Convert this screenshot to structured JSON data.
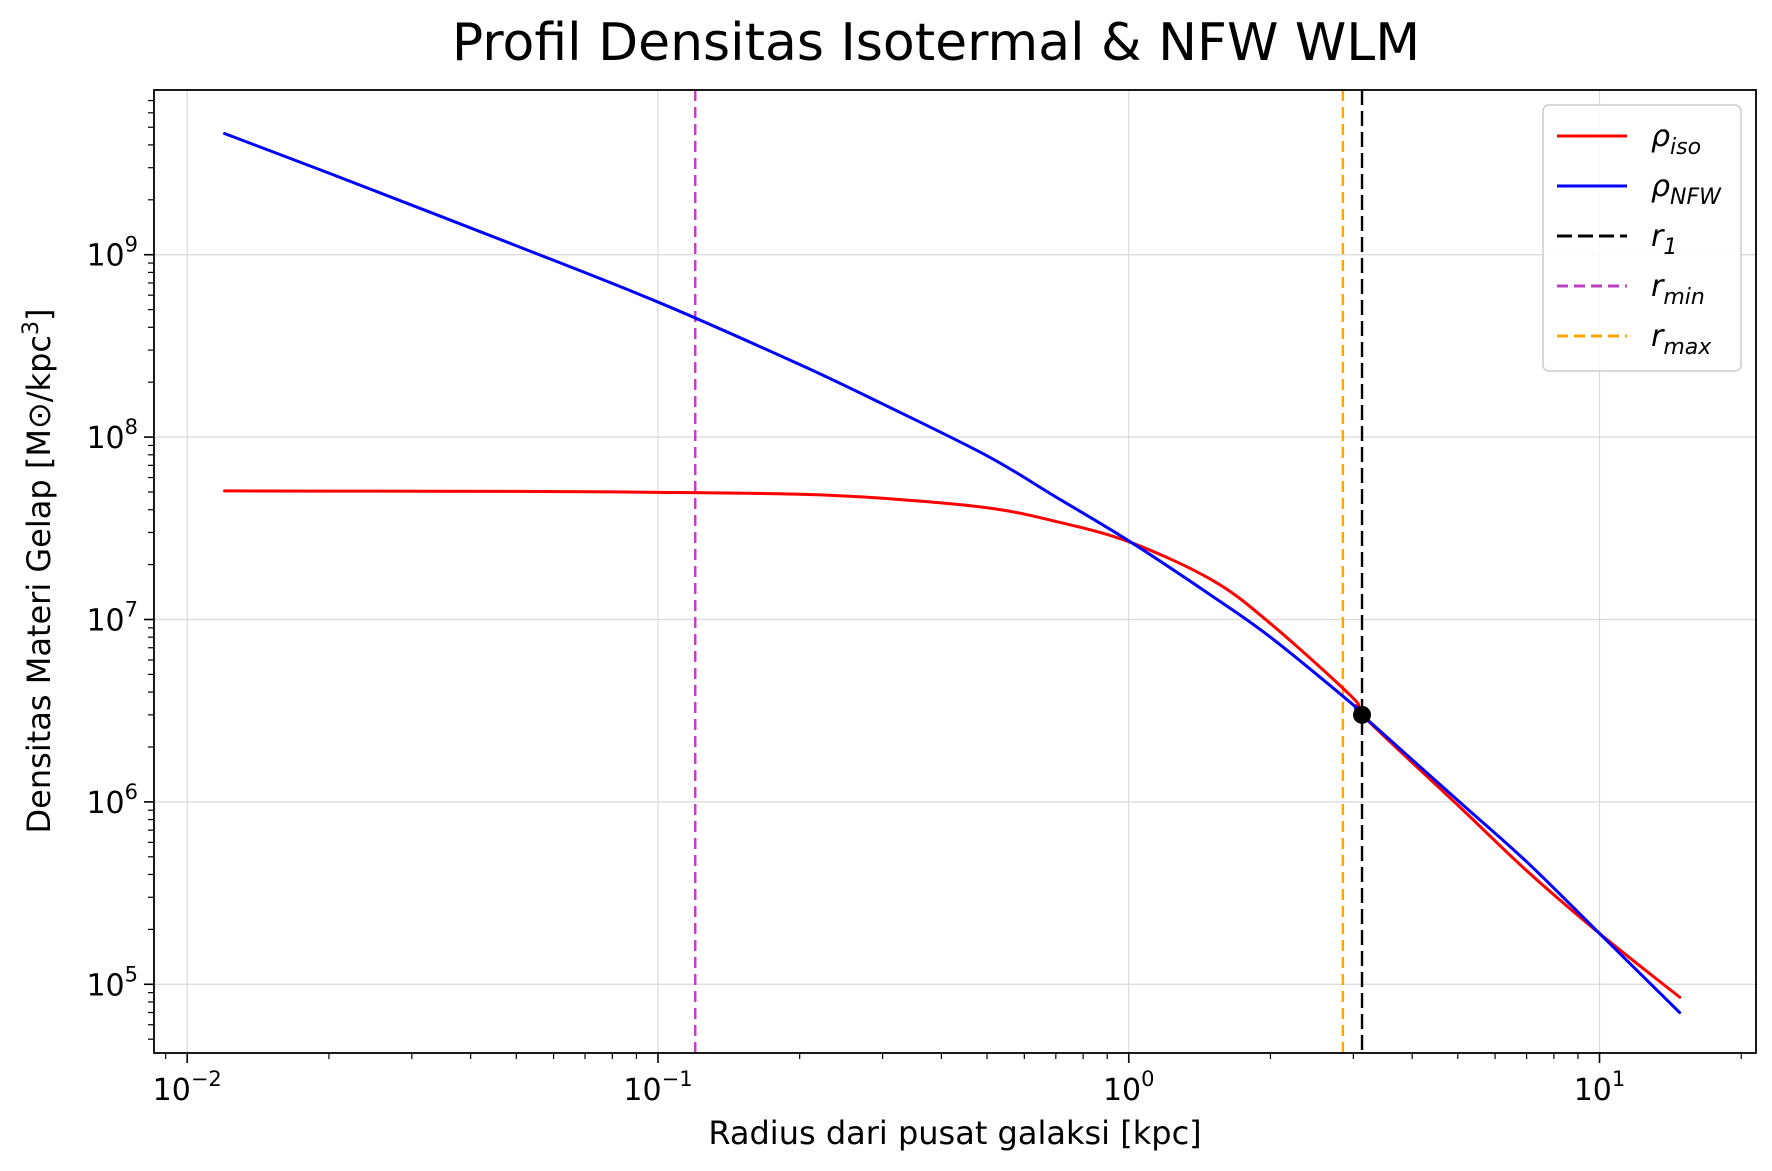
{
  "chart_data": {
    "type": "line",
    "title": "Profil Densitas Isotermal & NFW WLM",
    "xlabel": "Radius dari pusat galaksi [kpc]",
    "ylabel": "Densitas Materi Gelap [M⊙/kpc³]",
    "xscale": "log",
    "yscale": "log",
    "xlim": [
      0.0085,
      21.5
    ],
    "ylim": [
      42000,
      8000000000
    ],
    "grid": true,
    "legend_position": "top-right",
    "x_ticks": [
      {
        "value": 0.01,
        "base": "10",
        "exp": "−2"
      },
      {
        "value": 0.1,
        "base": "10",
        "exp": "−1"
      },
      {
        "value": 1,
        "base": "10",
        "exp": "0"
      },
      {
        "value": 10,
        "base": "10",
        "exp": "1"
      }
    ],
    "y_ticks": [
      {
        "value": 100000,
        "base": "10",
        "exp": "5"
      },
      {
        "value": 1000000,
        "base": "10",
        "exp": "6"
      },
      {
        "value": 10000000,
        "base": "10",
        "exp": "7"
      },
      {
        "value": 100000000,
        "base": "10",
        "exp": "8"
      },
      {
        "value": 1000000000,
        "base": "10",
        "exp": "9"
      }
    ],
    "series": [
      {
        "name": "ρ_iso",
        "legend_symbol": "ρ",
        "legend_sub": "iso",
        "color": "#ff0000",
        "style": "solid",
        "x": [
          0.012,
          0.02,
          0.05,
          0.1,
          0.2,
          0.3,
          0.5,
          0.7,
          1.0,
          1.5,
          2.0,
          3.0,
          3.13,
          5.0,
          7.0,
          10.0,
          14.8
        ],
        "y": [
          50700000,
          50600000,
          50400000,
          49800000,
          48600000,
          46200000,
          41000000,
          34500000,
          26700000,
          16500000,
          9500000,
          3700000,
          3000000,
          960000,
          420000,
          190000,
          85000
        ]
      },
      {
        "name": "ρ_NFW",
        "legend_symbol": "ρ",
        "legend_sub": "NFW",
        "color": "#0000ff",
        "style": "solid",
        "x": [
          0.012,
          0.02,
          0.05,
          0.1,
          0.2,
          0.3,
          0.5,
          0.7,
          1.0,
          1.5,
          2.0,
          3.0,
          3.13,
          5.0,
          7.0,
          10.0,
          14.8
        ],
        "y": [
          4620000000,
          2800000000,
          1120000000,
          550000000,
          250000000,
          152000000,
          79000000,
          47000000,
          27000000,
          13500000,
          8000000,
          3400000,
          3000000,
          1020000,
          470000,
          190000,
          70000
        ]
      }
    ],
    "vlines": [
      {
        "name": "r_1",
        "legend_symbol": "r",
        "legend_sub": "1",
        "x": 3.13,
        "color": "#000000",
        "style": "dashed"
      },
      {
        "name": "r_min",
        "legend_symbol": "r",
        "legend_sub": "min",
        "x": 0.12,
        "color": "#bf40bf",
        "style": "dashed"
      },
      {
        "name": "r_max",
        "legend_symbol": "r",
        "legend_sub": "max",
        "x": 2.85,
        "color": "#ffa500",
        "style": "dashed"
      }
    ],
    "marker": {
      "x": 3.13,
      "y": 3000000,
      "color": "#000000"
    }
  }
}
